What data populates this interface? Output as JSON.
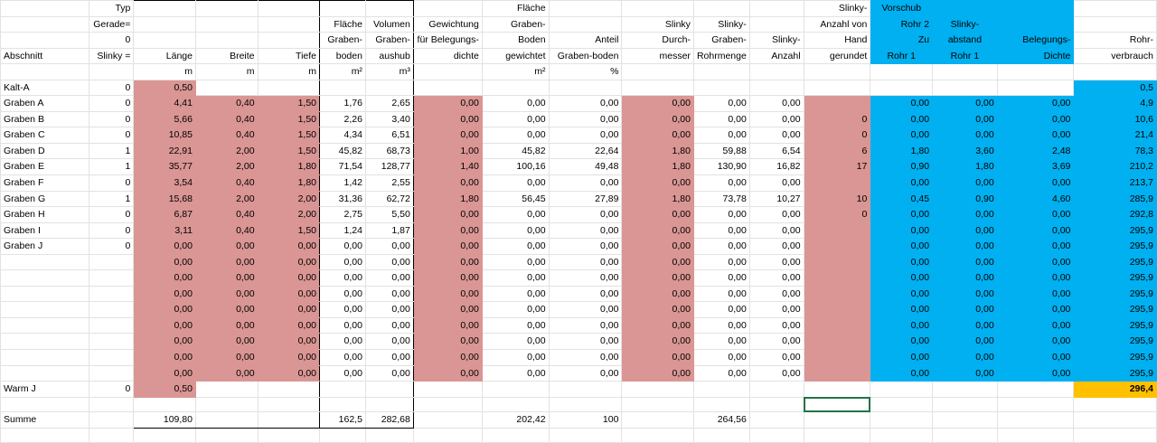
{
  "colors": {
    "pink": "#da9694",
    "blue": "#00b0f0",
    "gold": "#ffc000",
    "selection": "#217346"
  },
  "headers": [
    [
      "",
      "Typ",
      "",
      "",
      "",
      "",
      "",
      "",
      "Fläche",
      "",
      "",
      "",
      "",
      "Slinky-",
      "Vorschub",
      "",
      "",
      ""
    ],
    [
      "",
      "Gerade=",
      "",
      "",
      "",
      "Fläche",
      "Volumen",
      "Gewichtung",
      "Graben-",
      "",
      "Slinky",
      "Slinky-",
      "",
      "Anzahl von",
      "Rohr 2",
      "Slinky-",
      "",
      ""
    ],
    [
      "",
      "0",
      "",
      "",
      "",
      "Graben-",
      "Graben-",
      "für Belegungs-",
      "Boden",
      "Anteil",
      "Durch-",
      "Graben-",
      "Slinky-",
      "Hand",
      "Zu",
      "abstand",
      "Belegungs-",
      "Rohr-"
    ],
    [
      "Abschnitt",
      "Slinky =",
      "Länge",
      "Breite",
      "Tiefe",
      "boden",
      "aushub",
      "dichte",
      "gewichtet",
      "Graben-boden",
      "messer",
      "Rohrmenge",
      "Anzahl",
      "gerundet",
      "Rohr 1",
      "Rohr 1",
      "Dichte",
      "verbrauch"
    ],
    [
      "",
      "",
      "m",
      "m",
      "m",
      "m²",
      "m³",
      "",
      "m²",
      "%",
      "",
      "",
      "",
      "",
      "",
      "",
      "",
      ""
    ]
  ],
  "kalt_row": [
    "Kalt-A",
    "0",
    "0,50",
    "",
    "",
    "",
    "",
    "",
    "",
    "",
    "",
    "",
    "",
    "",
    "",
    "",
    "",
    "0,5"
  ],
  "rows": [
    [
      "Graben A",
      "0",
      "4,41",
      "0,40",
      "1,50",
      "1,76",
      "2,65",
      "0,00",
      "0,00",
      "0,00",
      "0,00",
      "0,00",
      "0,00",
      "",
      "0,00",
      "0,00",
      "0,00",
      "4,9"
    ],
    [
      "Graben B",
      "0",
      "5,66",
      "0,40",
      "1,50",
      "2,26",
      "3,40",
      "0,00",
      "0,00",
      "0,00",
      "0,00",
      "0,00",
      "0,00",
      "0",
      "0,00",
      "0,00",
      "0,00",
      "10,6"
    ],
    [
      "Graben C",
      "0",
      "10,85",
      "0,40",
      "1,50",
      "4,34",
      "6,51",
      "0,00",
      "0,00",
      "0,00",
      "0,00",
      "0,00",
      "0,00",
      "0",
      "0,00",
      "0,00",
      "0,00",
      "21,4"
    ],
    [
      "Graben D",
      "1",
      "22,91",
      "2,00",
      "1,50",
      "45,82",
      "68,73",
      "1,00",
      "45,82",
      "22,64",
      "1,80",
      "59,88",
      "6,54",
      "6",
      "1,80",
      "3,60",
      "2,48",
      "78,3"
    ],
    [
      "Graben E",
      "1",
      "35,77",
      "2,00",
      "1,80",
      "71,54",
      "128,77",
      "1,40",
      "100,16",
      "49,48",
      "1,80",
      "130,90",
      "16,82",
      "17",
      "0,90",
      "1,80",
      "3,69",
      "210,2"
    ],
    [
      "Graben F",
      "0",
      "3,54",
      "0,40",
      "1,80",
      "1,42",
      "2,55",
      "0,00",
      "0,00",
      "0,00",
      "0,00",
      "0,00",
      "0,00",
      "",
      "0,00",
      "0,00",
      "0,00",
      "213,7"
    ],
    [
      "Graben G",
      "1",
      "15,68",
      "2,00",
      "2,00",
      "31,36",
      "62,72",
      "1,80",
      "56,45",
      "27,89",
      "1,80",
      "73,78",
      "10,27",
      "10",
      "0,45",
      "0,90",
      "4,60",
      "285,9"
    ],
    [
      "Graben H",
      "0",
      "6,87",
      "0,40",
      "2,00",
      "2,75",
      "5,50",
      "0,00",
      "0,00",
      "0,00",
      "0,00",
      "0,00",
      "0,00",
      "0",
      "0,00",
      "0,00",
      "0,00",
      "292,8"
    ],
    [
      "Graben I",
      "0",
      "3,11",
      "0,40",
      "1,50",
      "1,24",
      "1,87",
      "0,00",
      "0,00",
      "0,00",
      "0,00",
      "0,00",
      "0,00",
      "",
      "0,00",
      "0,00",
      "0,00",
      "295,9"
    ],
    [
      "Graben J",
      "0",
      "0,00",
      "0,00",
      "0,00",
      "0,00",
      "0,00",
      "0,00",
      "0,00",
      "0,00",
      "0,00",
      "0,00",
      "0,00",
      "",
      "0,00",
      "0,00",
      "0,00",
      "295,9"
    ],
    [
      "",
      "",
      "0,00",
      "0,00",
      "0,00",
      "0,00",
      "0,00",
      "0,00",
      "0,00",
      "0,00",
      "0,00",
      "0,00",
      "0,00",
      "",
      "0,00",
      "0,00",
      "0,00",
      "295,9"
    ],
    [
      "",
      "",
      "0,00",
      "0,00",
      "0,00",
      "0,00",
      "0,00",
      "0,00",
      "0,00",
      "0,00",
      "0,00",
      "0,00",
      "0,00",
      "",
      "0,00",
      "0,00",
      "0,00",
      "295,9"
    ],
    [
      "",
      "",
      "0,00",
      "0,00",
      "0,00",
      "0,00",
      "0,00",
      "0,00",
      "0,00",
      "0,00",
      "0,00",
      "0,00",
      "0,00",
      "",
      "0,00",
      "0,00",
      "0,00",
      "295,9"
    ],
    [
      "",
      "",
      "0,00",
      "0,00",
      "0,00",
      "0,00",
      "0,00",
      "0,00",
      "0,00",
      "0,00",
      "0,00",
      "0,00",
      "0,00",
      "",
      "0,00",
      "0,00",
      "0,00",
      "295,9"
    ],
    [
      "",
      "",
      "0,00",
      "0,00",
      "0,00",
      "0,00",
      "0,00",
      "0,00",
      "0,00",
      "0,00",
      "0,00",
      "0,00",
      "0,00",
      "",
      "0,00",
      "0,00",
      "0,00",
      "295,9"
    ],
    [
      "",
      "",
      "0,00",
      "0,00",
      "0,00",
      "0,00",
      "0,00",
      "0,00",
      "0,00",
      "0,00",
      "0,00",
      "0,00",
      "0,00",
      "",
      "0,00",
      "0,00",
      "0,00",
      "295,9"
    ],
    [
      "",
      "",
      "0,00",
      "0,00",
      "0,00",
      "0,00",
      "0,00",
      "0,00",
      "0,00",
      "0,00",
      "0,00",
      "0,00",
      "0,00",
      "",
      "0,00",
      "0,00",
      "0,00",
      "295,9"
    ],
    [
      "",
      "",
      "0,00",
      "0,00",
      "0,00",
      "0,00",
      "0,00",
      "0,00",
      "0,00",
      "0,00",
      "0,00",
      "0,00",
      "0,00",
      "",
      "0,00",
      "0,00",
      "0,00",
      "295,9"
    ]
  ],
  "warm_row": [
    "Warm J",
    "0",
    "0,50",
    "",
    "",
    "",
    "",
    "",
    "",
    "",
    "",
    "",
    "",
    "",
    "",
    "",
    "",
    "296,4"
  ],
  "summe_row": [
    "Summe",
    "",
    "109,80",
    "",
    "",
    "162,5",
    "282,68",
    "",
    "202,42",
    "100",
    "",
    "264,56",
    "",
    "",
    "",
    "",
    "",
    ""
  ]
}
